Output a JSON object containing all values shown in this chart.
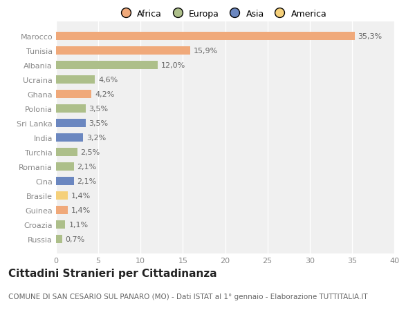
{
  "categories": [
    "Russia",
    "Croazia",
    "Guinea",
    "Brasile",
    "Cina",
    "Romania",
    "Turchia",
    "India",
    "Sri Lanka",
    "Polonia",
    "Ghana",
    "Ucraina",
    "Albania",
    "Tunisia",
    "Marocco"
  ],
  "values": [
    0.7,
    1.1,
    1.4,
    1.4,
    2.1,
    2.1,
    2.5,
    3.2,
    3.5,
    3.5,
    4.2,
    4.6,
    12.0,
    15.9,
    35.3
  ],
  "labels": [
    "0,7%",
    "1,1%",
    "1,4%",
    "1,4%",
    "2,1%",
    "2,1%",
    "2,5%",
    "3,2%",
    "3,5%",
    "3,5%",
    "4,2%",
    "4,6%",
    "12,0%",
    "15,9%",
    "35,3%"
  ],
  "continents": [
    "Europa",
    "Europa",
    "Africa",
    "America",
    "Asia",
    "Europa",
    "Europa",
    "Asia",
    "Asia",
    "Europa",
    "Africa",
    "Europa",
    "Europa",
    "Africa",
    "Africa"
  ],
  "continent_colors": {
    "Africa": "#F0A97A",
    "Europa": "#ADBF8A",
    "Asia": "#6B87C0",
    "America": "#F5D07A"
  },
  "legend_order": [
    "Africa",
    "Europa",
    "Asia",
    "America"
  ],
  "title": "Cittadini Stranieri per Cittadinanza",
  "subtitle": "COMUNE DI SAN CESARIO SUL PANARO (MO) - Dati ISTAT al 1° gennaio - Elaborazione TUTTITALIA.IT",
  "xlim": [
    0,
    40
  ],
  "xticks": [
    0,
    5,
    10,
    15,
    20,
    25,
    30,
    35,
    40
  ],
  "plot_bg": "#f0f0f0",
  "fig_bg": "#ffffff",
  "bar_height": 0.55,
  "title_fontsize": 11,
  "subtitle_fontsize": 7.5,
  "label_fontsize": 8,
  "tick_fontsize": 8,
  "legend_fontsize": 9,
  "label_color": "#666666",
  "tick_color": "#888888"
}
